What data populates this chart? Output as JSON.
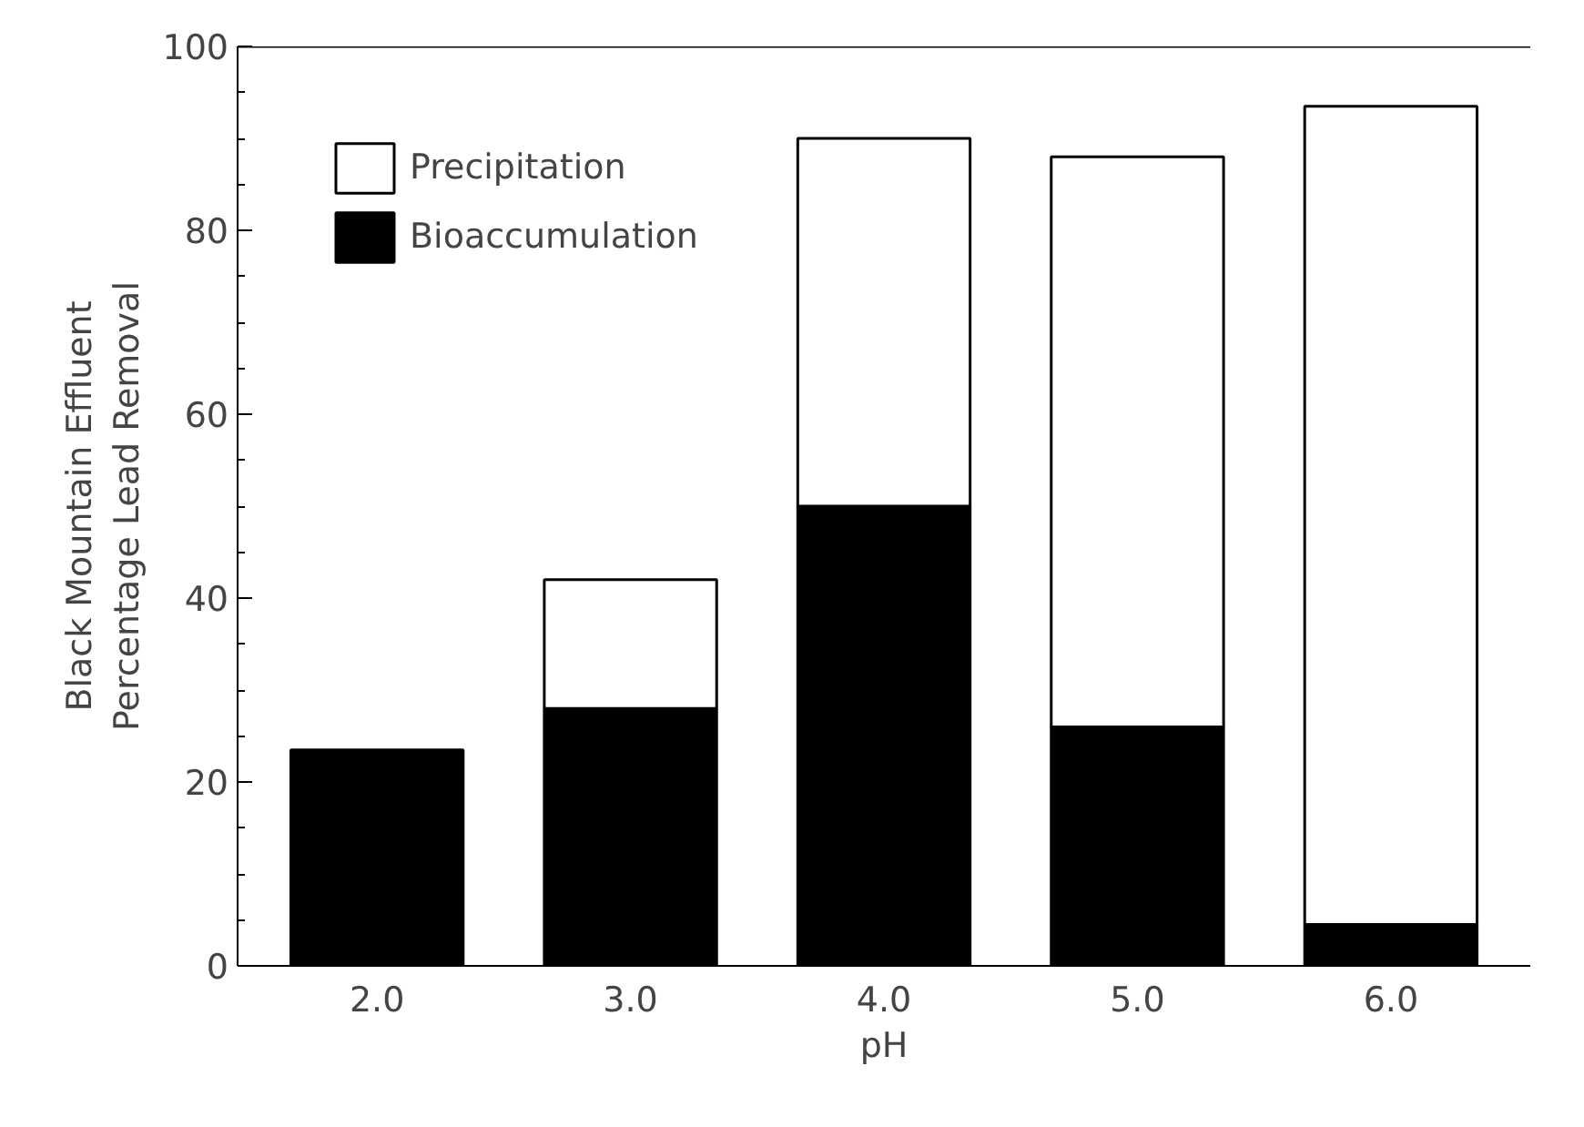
{
  "chart_data": {
    "type": "bar",
    "stacked": true,
    "xlabel": "pH",
    "ylabel": "Black Mountain Effluent\nPercentage Lead Removal",
    "categories": [
      "2.0",
      "3.0",
      "4.0",
      "5.0",
      "6.0"
    ],
    "series": [
      {
        "name": "Bioaccumulation",
        "color": "#000000",
        "values": [
          23.5,
          28,
          50,
          26,
          4.5
        ]
      },
      {
        "name": "Precipitation",
        "color": "#ffffff",
        "values": [
          null,
          14,
          40,
          62,
          89
        ]
      }
    ],
    "ylim": [
      0,
      100
    ],
    "yticks": [
      0,
      20,
      40,
      60,
      80,
      100
    ],
    "grid": false,
    "legend": "top left"
  }
}
